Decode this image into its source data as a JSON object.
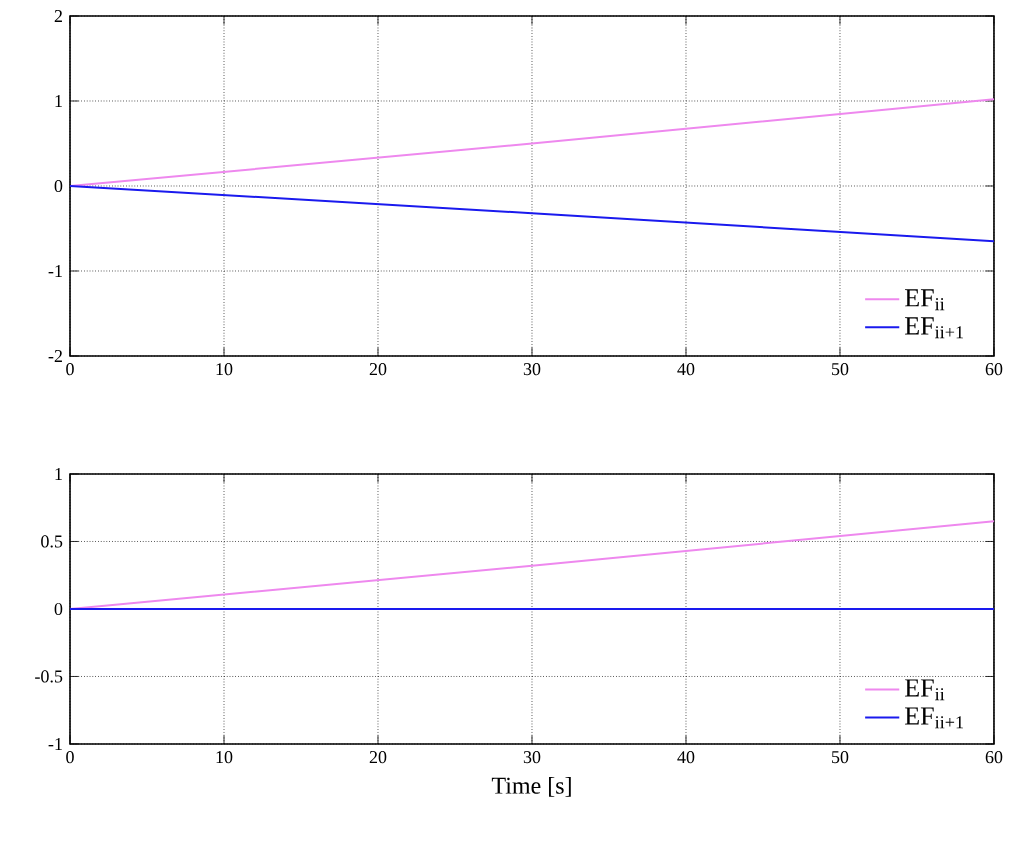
{
  "chart_data": [
    {
      "type": "line",
      "x": [
        0,
        30,
        60
      ],
      "xlim": [
        0,
        60
      ],
      "xticks": [
        0,
        10,
        20,
        30,
        40,
        50,
        60
      ],
      "ylim": [
        -2,
        2
      ],
      "yticks": [
        -2,
        -1,
        0,
        1,
        2
      ],
      "grid": true,
      "legend": "bottom right",
      "series": [
        {
          "name": "EF$_{ii}$",
          "color": "#ee88ee",
          "values": [
            0,
            0.5,
            1.02
          ]
        },
        {
          "name": "EF$_{ii+1}$",
          "color": "#1a1aee",
          "values": [
            0,
            -0.32,
            -0.65
          ]
        }
      ]
    },
    {
      "type": "line",
      "x": [
        0,
        30,
        60
      ],
      "xlim": [
        0,
        60
      ],
      "xticks": [
        0,
        10,
        20,
        30,
        40,
        50,
        60
      ],
      "ylim": [
        -1,
        1
      ],
      "yticks": [
        -1,
        -0.5,
        0,
        0.5,
        1
      ],
      "grid": true,
      "legend": "bottom right",
      "xlabel": "Time [s]",
      "series": [
        {
          "name": "EF$_{ii}$",
          "color": "#ee88ee",
          "values": [
            0,
            0.32,
            0.65
          ]
        },
        {
          "name": "EF$_{ii+1}$",
          "color": "#1a1aee",
          "values": [
            0,
            0,
            0
          ]
        }
      ]
    }
  ]
}
